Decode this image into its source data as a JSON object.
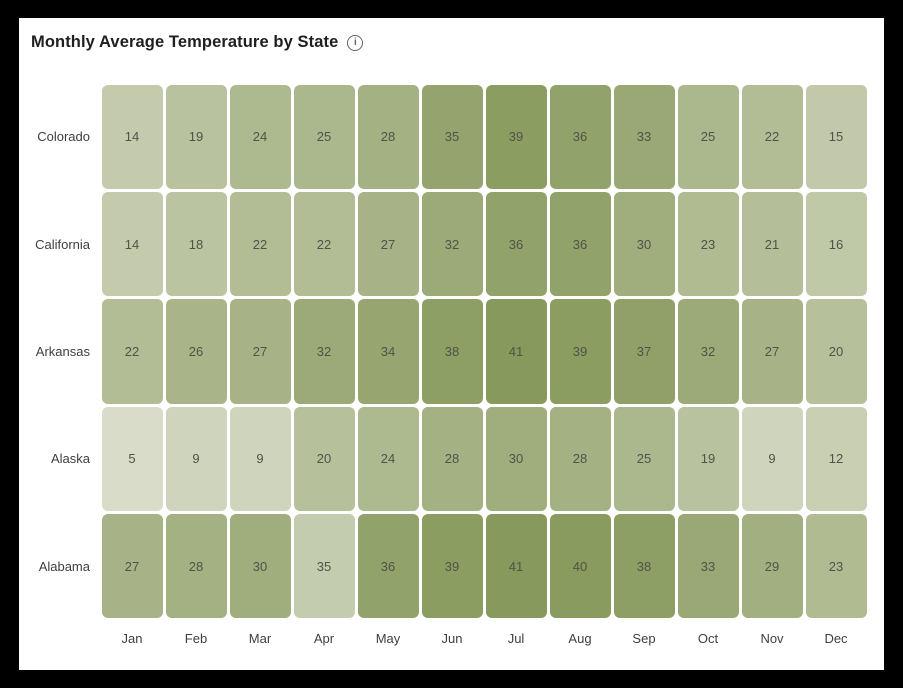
{
  "header": {
    "title": "Monthly Average Temperature by State",
    "info_icon_glyph": "i"
  },
  "chart_data": {
    "type": "heatmap",
    "title": "Monthly Average Temperature by State",
    "x_categories": [
      "Jan",
      "Feb",
      "Mar",
      "Apr",
      "May",
      "Jun",
      "Jul",
      "Aug",
      "Sep",
      "Oct",
      "Nov",
      "Dec"
    ],
    "y_categories": [
      "Colorado",
      "California",
      "Arkansas",
      "Alaska",
      "Alabama"
    ],
    "series": [
      {
        "name": "Colorado",
        "values": [
          14,
          19,
          24,
          25,
          28,
          35,
          39,
          36,
          33,
          25,
          22,
          15
        ]
      },
      {
        "name": "California",
        "values": [
          14,
          18,
          22,
          22,
          27,
          32,
          36,
          36,
          30,
          23,
          21,
          16
        ]
      },
      {
        "name": "Arkansas",
        "values": [
          22,
          26,
          27,
          32,
          34,
          38,
          41,
          39,
          37,
          32,
          27,
          20
        ]
      },
      {
        "name": "Alaska",
        "values": [
          5,
          9,
          9,
          20,
          24,
          28,
          30,
          28,
          25,
          19,
          9,
          12
        ]
      },
      {
        "name": "Alabama",
        "values": [
          27,
          28,
          30,
          35,
          36,
          39,
          41,
          40,
          38,
          33,
          29,
          23
        ]
      }
    ],
    "value_min": 5,
    "value_max": 41,
    "color_scale": {
      "low": "#d8dcc8",
      "high": "#87995c"
    },
    "cell_color_overrides": [
      {
        "row": "Alabama",
        "col": "Apr",
        "color": "#c3ccae"
      }
    ],
    "legend_position": "none",
    "grid": false
  },
  "colors": {
    "page_background": "#000000",
    "card_background": "#ffffff",
    "title_text": "#1f1f1f",
    "axis_label": "#3c4043",
    "cell_text": "#4e5447",
    "info_icon": "#5f6368"
  }
}
